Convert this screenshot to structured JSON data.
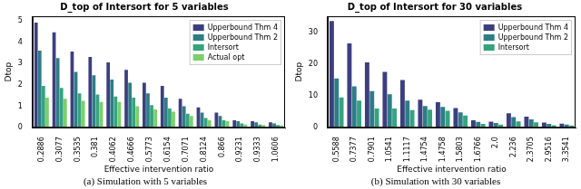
{
  "chart_data": [
    {
      "type": "bar",
      "title": "D_top of Intersort for 5 variables",
      "caption": "(a) Simulation with 5 variables",
      "x_label": "Effective intervention ratio",
      "y_label": "Dtop",
      "categories": [
        "0.2886",
        "0.3077",
        "0.3535",
        "0.381",
        "0.4062",
        "0.4666",
        "0.5773",
        "0.6154",
        "0.7071",
        "0.8124",
        "0.866",
        "0.9231",
        "0.9333",
        "1.0606"
      ],
      "series": [
        {
          "name": "Upperbound Thm 4",
          "color": "#3c3f7e",
          "values": [
            4.9,
            4.45,
            3.55,
            3.3,
            3.05,
            2.7,
            2.1,
            1.95,
            1.35,
            0.95,
            0.7,
            0.35,
            0.3,
            0.25
          ]
        },
        {
          "name": "Upperbound Thm 2",
          "color": "#2e7d86",
          "values": [
            3.6,
            3.25,
            2.6,
            2.45,
            2.25,
            2.1,
            1.6,
            1.4,
            1.0,
            0.7,
            0.55,
            0.3,
            0.25,
            0.2
          ]
        },
        {
          "name": "Intersort",
          "color": "#35a37f",
          "values": [
            1.95,
            1.85,
            1.6,
            1.55,
            1.45,
            1.4,
            1.05,
            0.9,
            0.65,
            0.45,
            0.35,
            0.2,
            0.15,
            0.12
          ]
        },
        {
          "name": "Actual opt",
          "color": "#7acf6a",
          "values": [
            1.4,
            1.35,
            1.25,
            1.2,
            1.2,
            1.0,
            0.85,
            0.75,
            0.55,
            0.35,
            0.3,
            0.15,
            0.12,
            0.1
          ]
        }
      ],
      "ylim": [
        0,
        5.2
      ],
      "yticks": [
        0,
        1,
        2,
        3,
        4,
        5
      ],
      "grid": false,
      "legend": "upper right"
    },
    {
      "type": "bar",
      "title": "D_top of Intersort for 30 variables",
      "caption": "(b) Simulation with 30 variables",
      "x_label": "Effective intervention ratio",
      "y_label": "Dtop",
      "categories": [
        "0.5588",
        "0.7377",
        "0.7901",
        "1.0541",
        "1.1117",
        "1.4754",
        "1.4758",
        "1.5803",
        "1.6766",
        "2.0",
        "2.236",
        "2.3705",
        "2.9516",
        "3.3541"
      ],
      "series": [
        {
          "name": "Upperbound Thm 4",
          "color": "#3c3f7e",
          "values": [
            33.5,
            26.5,
            20.5,
            17.5,
            15.0,
            8.8,
            8.0,
            6.2,
            2.3,
            1.9,
            4.5,
            3.5,
            1.6,
            1.3
          ]
        },
        {
          "name": "Upperbound Thm 2",
          "color": "#2e7d86",
          "values": [
            15.5,
            13.0,
            11.5,
            10.5,
            8.5,
            6.8,
            6.5,
            4.8,
            1.8,
            1.5,
            3.3,
            2.6,
            1.2,
            1.0
          ]
        },
        {
          "name": "Intersort",
          "color": "#35a37f",
          "values": [
            9.5,
            8.5,
            6.0,
            6.0,
            5.5,
            5.7,
            5.3,
            3.8,
            1.2,
            1.0,
            2.0,
            1.7,
            0.8,
            0.7
          ]
        }
      ],
      "ylim": [
        0,
        35
      ],
      "yticks": [
        0,
        10,
        20,
        30
      ],
      "grid": false,
      "legend": "upper right"
    }
  ]
}
